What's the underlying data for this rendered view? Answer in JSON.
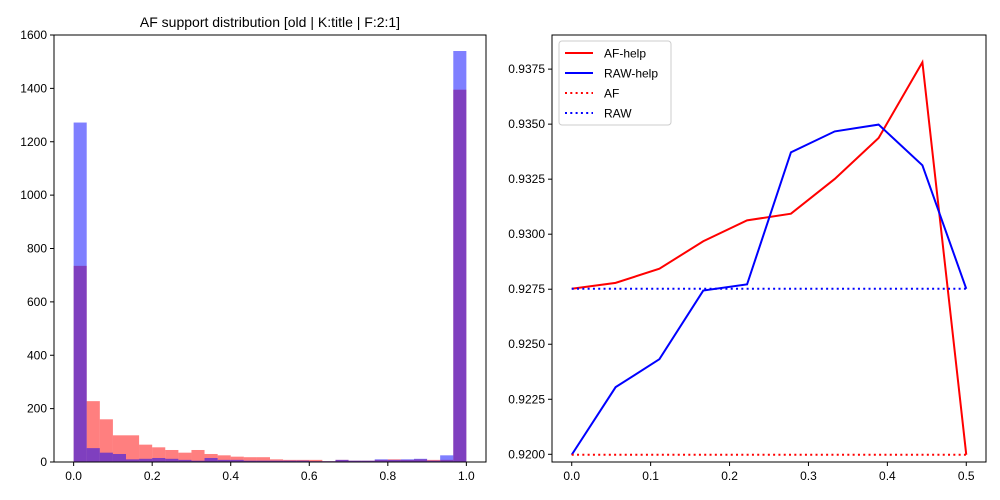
{
  "chart_data": [
    {
      "type": "bar",
      "title": "AF support distribution [old | K:title | F:2:1]",
      "xlabel": "",
      "ylabel": "",
      "xlim": [
        -0.05,
        1.05
      ],
      "ylim": [
        0,
        1600
      ],
      "xticks": [
        0.0,
        0.2,
        0.4,
        0.6,
        0.8,
        1.0
      ],
      "xtick_labels": [
        "0.0",
        "0.2",
        "0.4",
        "0.6",
        "0.8",
        "1.0"
      ],
      "yticks": [
        0,
        200,
        400,
        600,
        800,
        1000,
        1200,
        1400,
        1600
      ],
      "ytick_labels": [
        "0",
        "200",
        "400",
        "600",
        "800",
        "1000",
        "1200",
        "1400",
        "1600"
      ],
      "bin_edges": [
        0,
        0.0333,
        0.0667,
        0.1,
        0.1333,
        0.1667,
        0.2,
        0.2333,
        0.2667,
        0.3,
        0.3333,
        0.3667,
        0.4,
        0.4333,
        0.4667,
        0.5,
        0.5333,
        0.5667,
        0.6,
        0.6333,
        0.6667,
        0.7,
        0.7333,
        0.7667,
        0.8,
        0.8333,
        0.8667,
        0.9,
        0.9333,
        0.9667,
        1.0
      ],
      "series": [
        {
          "color": "#ff0000",
          "opacity": 0.5,
          "values": [
            735,
            228,
            160,
            100,
            100,
            65,
            55,
            45,
            35,
            45,
            30,
            25,
            20,
            18,
            18,
            10,
            8,
            8,
            8,
            3,
            8,
            5,
            5,
            8,
            10,
            8,
            10,
            8,
            8,
            1395
          ]
        },
        {
          "color": "#0000ff",
          "opacity": 0.5,
          "values": [
            1272,
            52,
            35,
            30,
            10,
            12,
            15,
            12,
            8,
            5,
            15,
            8,
            8,
            5,
            5,
            5,
            5,
            5,
            3,
            3,
            8,
            5,
            5,
            10,
            8,
            10,
            12,
            5,
            25,
            1540
          ]
        }
      ],
      "grid": false
    },
    {
      "type": "line",
      "title": "",
      "xlabel": "",
      "ylabel": "",
      "xlim": [
        -0.025,
        0.525
      ],
      "ylim": [
        0.91965,
        0.93905
      ],
      "xticks": [
        0.0,
        0.1,
        0.2,
        0.3,
        0.4,
        0.5
      ],
      "xtick_labels": [
        "0.0",
        "0.1",
        "0.2",
        "0.3",
        "0.4",
        "0.5"
      ],
      "yticks": [
        0.92,
        0.9225,
        0.925,
        0.9275,
        0.93,
        0.9325,
        0.935,
        0.9375
      ],
      "ytick_labels": [
        "0.9200",
        "0.9225",
        "0.9250",
        "0.9275",
        "0.9300",
        "0.9325",
        "0.9350",
        "0.9375"
      ],
      "x": [
        0.0,
        0.0556,
        0.1111,
        0.1667,
        0.2222,
        0.2778,
        0.3333,
        0.3889,
        0.4444,
        0.5
      ],
      "series": [
        {
          "name": "AF-help",
          "color": "#ff0000",
          "style": "solid",
          "values": [
            0.92752,
            0.92779,
            0.92843,
            0.92968,
            0.93063,
            0.93093,
            0.93251,
            0.93437,
            0.93781,
            0.91998
          ]
        },
        {
          "name": "RAW-help",
          "color": "#0000ff",
          "style": "solid",
          "values": [
            0.91998,
            0.92305,
            0.92432,
            0.92744,
            0.92772,
            0.93372,
            0.93467,
            0.93498,
            0.93313,
            0.92752
          ]
        },
        {
          "name": "AF",
          "color": "#ff0000",
          "style": "dotted",
          "values": [
            0.91998,
            0.91998,
            0.91998,
            0.91998,
            0.91998,
            0.91998,
            0.91998,
            0.91998,
            0.91998,
            0.91998
          ]
        },
        {
          "name": "RAW",
          "color": "#0000ff",
          "style": "dotted",
          "values": [
            0.92752,
            0.92752,
            0.92752,
            0.92752,
            0.92752,
            0.92752,
            0.92752,
            0.92752,
            0.92752,
            0.92752
          ]
        }
      ],
      "legend_position": "top-left",
      "grid": false
    }
  ]
}
